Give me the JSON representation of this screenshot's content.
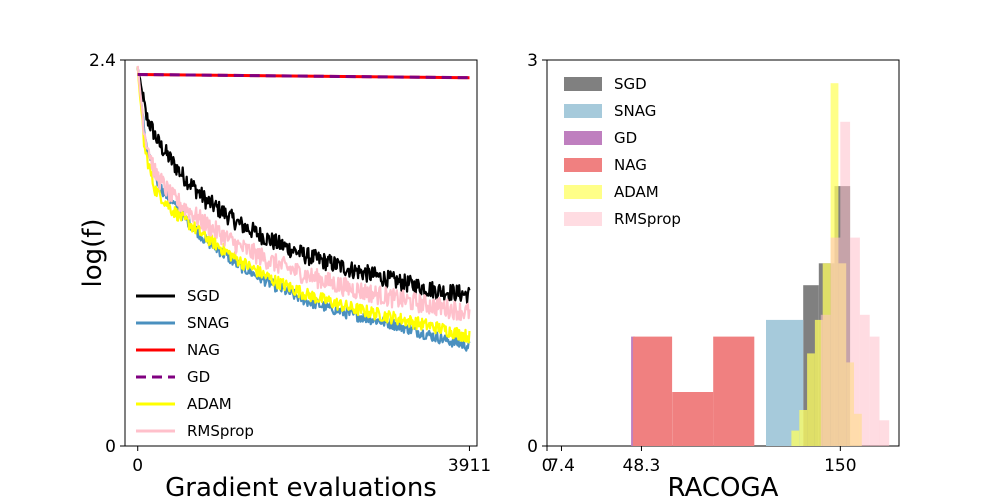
{
  "chart_data": [
    {
      "type": "line",
      "xlabel": "Gradient evaluations",
      "ylabel": "log(f)",
      "xlim": [
        -150,
        4000
      ],
      "ylim": [
        0,
        2.4
      ],
      "xticks": [
        {
          "value": 0,
          "label": "0"
        },
        {
          "value": 3911,
          "label": "3911"
        }
      ],
      "yticks": [
        {
          "value": 0,
          "label": "0"
        },
        {
          "value": 2.4,
          "label": "2.4"
        }
      ],
      "legend_position": "lower-left",
      "series": [
        {
          "name": "SGD",
          "color": "#000000",
          "dash": "solid",
          "noise": 0.055,
          "points": [
            [
              0,
              2.35
            ],
            [
              100,
              2.05
            ],
            [
              250,
              1.88
            ],
            [
              500,
              1.7
            ],
            [
              800,
              1.53
            ],
            [
              1200,
              1.38
            ],
            [
              1600,
              1.27
            ],
            [
              2000,
              1.18
            ],
            [
              2500,
              1.1
            ],
            [
              3000,
              1.03
            ],
            [
              3500,
              0.97
            ],
            [
              3911,
              0.94
            ]
          ]
        },
        {
          "name": "SNAG",
          "color": "#4a90bf",
          "dash": "solid",
          "noise": 0.035,
          "points": [
            [
              0,
              2.35
            ],
            [
              100,
              1.85
            ],
            [
              250,
              1.62
            ],
            [
              500,
              1.45
            ],
            [
              800,
              1.28
            ],
            [
              1200,
              1.12
            ],
            [
              1600,
              1.0
            ],
            [
              2000,
              0.9
            ],
            [
              2500,
              0.82
            ],
            [
              3000,
              0.76
            ],
            [
              3500,
              0.68
            ],
            [
              3911,
              0.62
            ]
          ]
        },
        {
          "name": "NAG",
          "color": "#ff0000",
          "dash": "solid",
          "noise": 0,
          "points": [
            [
              0,
              2.31
            ],
            [
              3911,
              2.29
            ]
          ]
        },
        {
          "name": "GD",
          "color": "#800080",
          "dash": "dashed",
          "noise": 0,
          "points": [
            [
              0,
              2.31
            ],
            [
              3911,
              2.29
            ]
          ]
        },
        {
          "name": "ADAM",
          "color": "#ffff00",
          "dash": "solid",
          "noise": 0.04,
          "points": [
            [
              0,
              2.35
            ],
            [
              80,
              1.85
            ],
            [
              200,
              1.6
            ],
            [
              400,
              1.47
            ],
            [
              800,
              1.3
            ],
            [
              1200,
              1.15
            ],
            [
              1600,
              1.03
            ],
            [
              2000,
              0.94
            ],
            [
              2500,
              0.86
            ],
            [
              3000,
              0.8
            ],
            [
              3500,
              0.74
            ],
            [
              3911,
              0.68
            ]
          ]
        },
        {
          "name": "RMSprop",
          "color": "#ffc0cb",
          "dash": "solid",
          "noise": 0.06,
          "points": [
            [
              0,
              2.35
            ],
            [
              80,
              1.95
            ],
            [
              200,
              1.7
            ],
            [
              400,
              1.55
            ],
            [
              800,
              1.38
            ],
            [
              1200,
              1.24
            ],
            [
              1600,
              1.14
            ],
            [
              2000,
              1.06
            ],
            [
              2500,
              0.98
            ],
            [
              3000,
              0.92
            ],
            [
              3500,
              0.87
            ],
            [
              3911,
              0.83
            ]
          ]
        }
      ]
    },
    {
      "type": "histogram",
      "xlabel": "RACOGA",
      "ylabel": "",
      "xlim": [
        0,
        180
      ],
      "ylim": [
        0,
        3
      ],
      "xticks": [
        {
          "value": 0,
          "label": "0"
        },
        {
          "value": 7.4,
          "label": "7.4"
        },
        {
          "value": 48.3,
          "label": "48.3"
        },
        {
          "value": 150,
          "label": "150"
        }
      ],
      "yticks": [
        {
          "value": 0,
          "label": "0"
        },
        {
          "value": 3,
          "label": "3"
        }
      ],
      "legend_position": "upper-left",
      "series": [
        {
          "name": "SGD",
          "color": "#808080",
          "opacity": 1,
          "bins": [
            [
              131,
              139,
              1.25
            ],
            [
              139,
              147,
              1.42
            ],
            [
              147,
              155,
              2.02
            ]
          ]
        },
        {
          "name": "SNAG",
          "color": "#a6cadb",
          "opacity": 1,
          "bins": [
            [
              112,
              131,
              0.98
            ]
          ]
        },
        {
          "name": "GD",
          "color": "#bf7fbf",
          "opacity": 1,
          "bins": [
            [
              43,
              45,
              0.85
            ]
          ]
        },
        {
          "name": "NAG",
          "color": "#f08080",
          "opacity": 1,
          "bins": [
            [
              44,
              64,
              0.85
            ],
            [
              64,
              85,
              0.42
            ],
            [
              85,
              106,
              0.85
            ]
          ]
        },
        {
          "name": "ADAM",
          "color": "#ffff60",
          "opacity": 0.75,
          "bins": [
            [
              125,
              129,
              0.12
            ],
            [
              129,
              133,
              0.28
            ],
            [
              133,
              137,
              0.72
            ],
            [
              137,
              141,
              0.98
            ],
            [
              141,
              145,
              1.42
            ],
            [
              145,
              149,
              2.82
            ],
            [
              149,
              153,
              1.42
            ],
            [
              153,
              157,
              0.65
            ],
            [
              157,
              161,
              0.25
            ]
          ]
        },
        {
          "name": "RMSprop",
          "color": "#ffc0cb",
          "opacity": 0.55,
          "bins": [
            [
              140,
              145,
              1.02
            ],
            [
              145,
              150,
              1.62
            ],
            [
              150,
              155,
              2.52
            ],
            [
              155,
              160,
              1.62
            ],
            [
              160,
              165,
              1.02
            ],
            [
              165,
              170,
              0.85
            ],
            [
              170,
              175,
              0.2
            ]
          ]
        }
      ]
    }
  ]
}
